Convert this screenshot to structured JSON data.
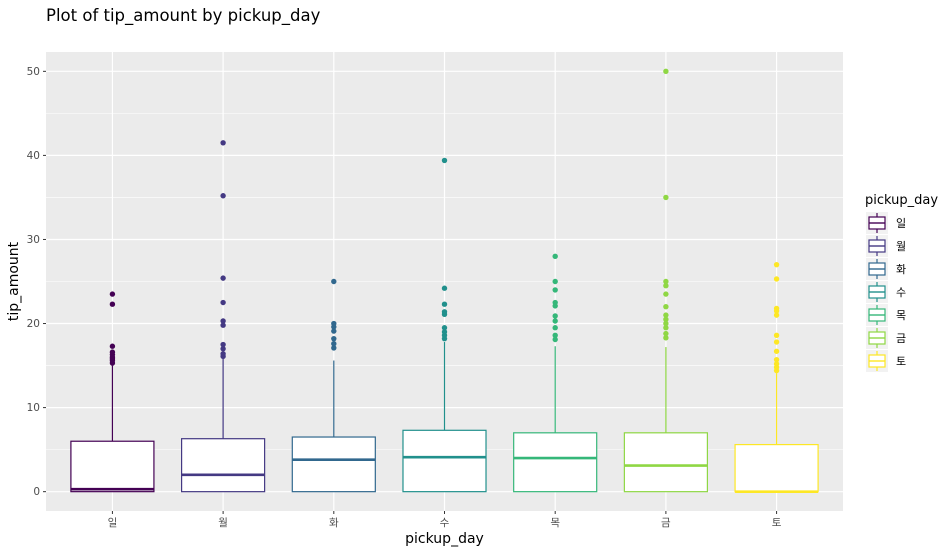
{
  "chart_data": {
    "type": "boxplot",
    "title": "Plot of tip_amount by pickup_day",
    "xlabel": "pickup_day",
    "ylabel": "tip_amount",
    "ylim": [
      -2.3,
      52.3
    ],
    "yticks": [
      0,
      10,
      20,
      30,
      40,
      50
    ],
    "grid": true,
    "legend": {
      "title": "pickup_day",
      "position": "right"
    },
    "categories": [
      "일",
      "월",
      "화",
      "수",
      "목",
      "금",
      "토"
    ],
    "colors": [
      "#440154",
      "#443983",
      "#31688E",
      "#21908C",
      "#35B779",
      "#8FD744",
      "#FDE725"
    ],
    "boxes": [
      {
        "q1": 0.0,
        "median": 0.3,
        "q3": 6.0,
        "whisker_low": 0.0,
        "whisker_high": 15.0,
        "outliers": [
          15.3,
          15.6,
          15.8,
          16.0,
          16.3,
          16.6,
          17.3,
          22.3,
          23.5
        ]
      },
      {
        "q1": 0.0,
        "median": 2.0,
        "q3": 6.3,
        "whisker_low": 0.0,
        "whisker_high": 15.8,
        "outliers": [
          16.1,
          16.4,
          17.0,
          17.5,
          19.8,
          20.3,
          22.5,
          25.4,
          35.2,
          41.5
        ]
      },
      {
        "q1": 0.0,
        "median": 3.8,
        "q3": 6.5,
        "whisker_low": 0.0,
        "whisker_high": 15.6,
        "outliers": [
          17.1,
          17.6,
          18.2,
          19.1,
          19.6,
          20.0,
          25.0
        ]
      },
      {
        "q1": 0.0,
        "median": 4.1,
        "q3": 7.3,
        "whisker_low": 0.0,
        "whisker_high": 17.8,
        "outliers": [
          18.2,
          18.6,
          19.0,
          19.5,
          21.1,
          21.4,
          22.3,
          24.2,
          39.4
        ]
      },
      {
        "q1": 0.0,
        "median": 4.0,
        "q3": 7.0,
        "whisker_low": 0.0,
        "whisker_high": 17.3,
        "outliers": [
          18.1,
          18.6,
          19.5,
          20.3,
          20.9,
          22.1,
          22.5,
          24.0,
          25.0,
          28.0
        ]
      },
      {
        "q1": 0.0,
        "median": 3.1,
        "q3": 7.0,
        "whisker_low": 0.0,
        "whisker_high": 17.2,
        "outliers": [
          18.3,
          18.8,
          19.5,
          20.0,
          20.5,
          21.0,
          22.0,
          23.5,
          24.5,
          25.0,
          35.0,
          50.0
        ]
      },
      {
        "q1": 0.0,
        "median": 0.0,
        "q3": 5.6,
        "whisker_low": 0.0,
        "whisker_high": 14.1,
        "outliers": [
          14.4,
          14.8,
          15.2,
          15.7,
          16.7,
          17.8,
          18.6,
          21.0,
          21.5,
          21.8,
          25.3,
          27.0
        ]
      }
    ]
  }
}
